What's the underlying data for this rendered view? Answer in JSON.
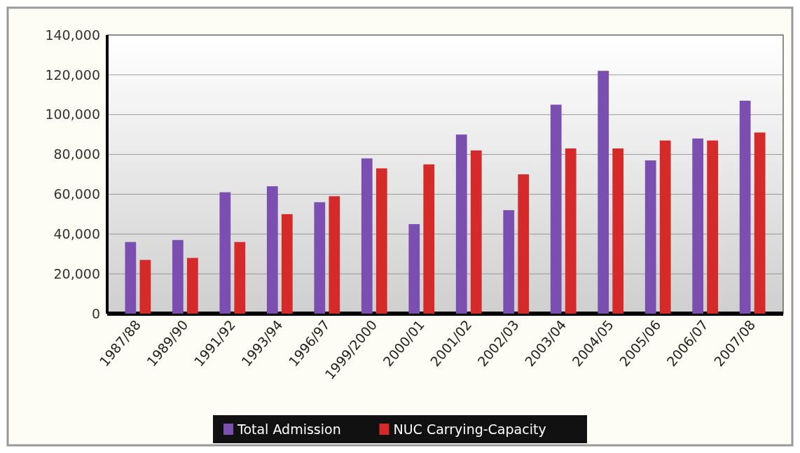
{
  "chart_data": {
    "type": "bar",
    "categories": [
      "1987/88",
      "1989/90",
      "1991/92",
      "1993/94",
      "1996/97",
      "1999/2000",
      "2000/01",
      "2001/02",
      "2002/03",
      "2003/04",
      "2004/05",
      "2005/06",
      "2006/07",
      "2007/08"
    ],
    "series": [
      {
        "name": "Total Admission",
        "color": "#7b4fb0",
        "values": [
          36000,
          37000,
          61000,
          64000,
          56000,
          78000,
          45000,
          90000,
          52000,
          105000,
          122000,
          77000,
          88000,
          107000
        ]
      },
      {
        "name": "NUC Carrying-Capacity",
        "color": "#d42a2a",
        "values": [
          27000,
          28000,
          36000,
          50000,
          59000,
          73000,
          75000,
          82000,
          70000,
          83000,
          83000,
          87000,
          87000,
          91000
        ]
      }
    ],
    "ylim": [
      0,
      140000
    ],
    "yticks": [
      0,
      {
        "value": 20000,
        "label": "20,000"
      },
      {
        "value": 40000,
        "label": "40,000"
      },
      {
        "value": 60000,
        "label": "60,000"
      },
      {
        "value": 80000,
        "label": "80,000"
      },
      {
        "value": 100000,
        "label": "100,000"
      },
      {
        "value": 120000,
        "label": "120,000"
      },
      {
        "value": 140000,
        "label": "140,000"
      }
    ],
    "grid": "y",
    "legend": "bottom"
  }
}
